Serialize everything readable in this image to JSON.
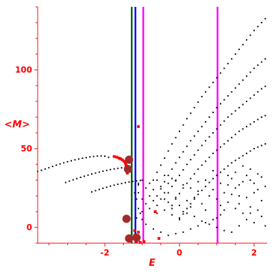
{
  "chart_data": {
    "type": "scatter",
    "title": "",
    "xlabel": "E",
    "ylabel": "<M>",
    "xlim": [
      -3.8,
      2.35
    ],
    "ylim": [
      -10,
      140
    ],
    "x_ticks": [
      -2,
      0,
      2
    ],
    "y_ticks": [
      0,
      50,
      100
    ],
    "grid": false,
    "legend": "none",
    "colors": {
      "axes": "#ff0000",
      "points": "#000000",
      "highlight": "#ff0000",
      "highlight_large": "#a52a2a",
      "line_green": "#006400",
      "line_blue": "#0000ff",
      "line_magenta": "#ff00ff"
    },
    "vertical_lines": [
      {
        "x": -1.28,
        "color": "line_green"
      },
      {
        "x": -1.18,
        "color": "line_blue"
      },
      {
        "x": -0.97,
        "color": "line_magenta"
      },
      {
        "x": 1.02,
        "color": "line_magenta"
      }
    ],
    "series": [
      {
        "points": [
          [
            -3.8,
            35.5
          ],
          [
            -3.7,
            36.3
          ],
          [
            -3.6,
            37.1
          ],
          [
            -3.5,
            37.9
          ],
          [
            -3.4,
            38.7
          ],
          [
            -3.3,
            39.5
          ],
          [
            -3.2,
            40.3
          ],
          [
            -3.1,
            41.0
          ],
          [
            -3.0,
            41.7
          ],
          [
            -2.9,
            42.3
          ],
          [
            -2.8,
            42.9
          ],
          [
            -2.7,
            43.4
          ],
          [
            -2.6,
            43.9
          ],
          [
            -2.5,
            44.3
          ],
          [
            -2.4,
            44.7
          ],
          [
            -2.3,
            45.0
          ],
          [
            -2.2,
            45.3
          ],
          [
            -2.1,
            45.4
          ],
          [
            -2.0,
            45.2
          ],
          [
            -1.9,
            44.5
          ]
        ]
      },
      {
        "points": [
          [
            -3.05,
            28.5
          ],
          [
            -2.95,
            29.4
          ],
          [
            -2.85,
            30.2
          ],
          [
            -2.75,
            31.0
          ],
          [
            -2.65,
            31.8
          ],
          [
            -2.55,
            32.5
          ],
          [
            -2.45,
            33.2
          ],
          [
            -2.35,
            33.9
          ],
          [
            -2.25,
            34.5
          ],
          [
            -2.15,
            35.1
          ],
          [
            -2.05,
            35.7
          ],
          [
            -1.95,
            36.2
          ],
          [
            -1.85,
            36.7
          ],
          [
            -1.75,
            37.1
          ],
          [
            -1.65,
            37.5
          ],
          [
            -1.55,
            37.8
          ],
          [
            -1.45,
            38.0
          ],
          [
            -1.35,
            38.1
          ]
        ]
      },
      {
        "points": [
          [
            -2.35,
            22.5
          ],
          [
            -2.25,
            23.3
          ],
          [
            -2.15,
            24.1
          ],
          [
            -2.05,
            24.8
          ],
          [
            -1.95,
            25.5
          ],
          [
            -1.85,
            26.2
          ],
          [
            -1.75,
            26.8
          ],
          [
            -1.65,
            27.4
          ],
          [
            -1.55,
            27.9
          ],
          [
            -1.45,
            28.4
          ],
          [
            -1.35,
            28.8
          ],
          [
            -1.25,
            29.2
          ],
          [
            -1.15,
            29.5
          ],
          [
            -1.05,
            29.8
          ]
        ]
      },
      {
        "points": [
          [
            -0.7,
            30
          ],
          [
            -0.6,
            35
          ],
          [
            -0.5,
            39.5
          ],
          [
            -0.4,
            44
          ],
          [
            -0.3,
            48.5
          ],
          [
            -0.2,
            53
          ],
          [
            -0.1,
            57
          ],
          [
            0.0,
            61
          ],
          [
            0.1,
            65
          ],
          [
            0.2,
            69
          ],
          [
            0.3,
            72.5
          ],
          [
            0.4,
            76
          ],
          [
            0.5,
            79.5
          ],
          [
            0.6,
            83
          ],
          [
            0.7,
            86
          ],
          [
            0.8,
            89
          ],
          [
            0.9,
            92
          ],
          [
            1.0,
            95
          ],
          [
            1.1,
            98
          ],
          [
            1.2,
            101
          ],
          [
            1.3,
            104
          ],
          [
            1.4,
            107
          ],
          [
            1.5,
            110
          ],
          [
            1.6,
            113
          ],
          [
            1.7,
            116
          ],
          [
            1.8,
            119
          ],
          [
            1.9,
            122
          ],
          [
            2.0,
            125
          ],
          [
            2.1,
            127.5
          ],
          [
            2.2,
            130
          ],
          [
            2.3,
            132.5
          ]
        ]
      },
      {
        "points": [
          [
            -0.6,
            20
          ],
          [
            -0.5,
            24.5
          ],
          [
            -0.4,
            29
          ],
          [
            -0.3,
            33
          ],
          [
            -0.2,
            37
          ],
          [
            -0.1,
            41
          ],
          [
            0.0,
            44.5
          ],
          [
            0.1,
            48
          ],
          [
            0.2,
            51.5
          ],
          [
            0.3,
            55
          ],
          [
            0.4,
            58
          ],
          [
            0.5,
            61
          ],
          [
            0.6,
            64
          ],
          [
            0.7,
            67
          ],
          [
            0.8,
            70
          ],
          [
            0.9,
            73
          ],
          [
            1.0,
            76
          ],
          [
            1.1,
            78.5
          ],
          [
            1.2,
            81
          ],
          [
            1.3,
            83.5
          ],
          [
            1.4,
            86
          ],
          [
            1.5,
            88.5
          ],
          [
            1.6,
            91
          ],
          [
            1.7,
            93.5
          ],
          [
            1.8,
            96
          ],
          [
            1.9,
            98.5
          ],
          [
            2.0,
            101
          ],
          [
            2.1,
            103
          ],
          [
            2.2,
            105
          ],
          [
            2.3,
            107
          ]
        ]
      },
      {
        "points": [
          [
            -0.4,
            18
          ],
          [
            -0.3,
            22
          ],
          [
            -0.2,
            26
          ],
          [
            -0.1,
            29.5
          ],
          [
            0.0,
            33
          ],
          [
            0.1,
            36.5
          ],
          [
            0.2,
            40
          ],
          [
            0.3,
            43
          ],
          [
            0.4,
            46
          ],
          [
            0.5,
            49
          ],
          [
            0.6,
            52
          ],
          [
            0.7,
            55
          ],
          [
            0.8,
            57.5
          ],
          [
            0.9,
            60
          ],
          [
            1.0,
            62.5
          ],
          [
            1.1,
            65
          ],
          [
            1.2,
            67.5
          ],
          [
            1.3,
            70
          ],
          [
            1.4,
            72
          ],
          [
            1.5,
            74
          ],
          [
            1.6,
            76
          ],
          [
            1.7,
            78
          ],
          [
            1.8,
            80
          ],
          [
            1.9,
            82
          ],
          [
            2.0,
            84
          ],
          [
            2.1,
            86
          ],
          [
            2.2,
            88
          ],
          [
            2.3,
            89.5
          ]
        ]
      },
      {
        "points": [
          [
            -0.2,
            14
          ],
          [
            -0.1,
            18
          ],
          [
            0.0,
            21.5
          ],
          [
            0.1,
            25
          ],
          [
            0.2,
            28
          ],
          [
            0.3,
            31
          ],
          [
            0.4,
            34
          ],
          [
            0.5,
            37
          ],
          [
            0.6,
            39.5
          ],
          [
            0.7,
            42
          ],
          [
            0.8,
            44.5
          ],
          [
            0.9,
            47
          ],
          [
            1.0,
            49
          ],
          [
            1.1,
            51
          ],
          [
            1.2,
            53
          ],
          [
            1.3,
            55
          ],
          [
            1.4,
            57
          ],
          [
            1.5,
            59
          ],
          [
            1.6,
            61
          ],
          [
            1.7,
            62.5
          ],
          [
            1.8,
            64
          ],
          [
            1.9,
            65.5
          ],
          [
            2.0,
            67
          ],
          [
            2.1,
            68.5
          ],
          [
            2.2,
            70
          ],
          [
            2.3,
            71
          ]
        ]
      },
      {
        "points": [
          [
            0.0,
            5
          ],
          [
            0.1,
            8.5
          ],
          [
            0.2,
            12
          ],
          [
            0.3,
            15
          ],
          [
            0.4,
            18
          ],
          [
            0.5,
            21
          ],
          [
            0.6,
            23.5
          ],
          [
            0.7,
            26
          ],
          [
            0.8,
            28.5
          ],
          [
            0.9,
            31
          ],
          [
            1.0,
            33
          ],
          [
            1.1,
            35
          ],
          [
            1.2,
            37
          ],
          [
            1.3,
            39
          ],
          [
            1.4,
            41
          ],
          [
            1.5,
            42.5
          ],
          [
            1.6,
            44
          ],
          [
            1.7,
            45.5
          ],
          [
            1.8,
            47
          ],
          [
            1.9,
            48.5
          ],
          [
            2.0,
            50
          ],
          [
            2.1,
            51
          ],
          [
            2.2,
            52
          ],
          [
            2.3,
            53
          ]
        ]
      },
      {
        "points": [
          [
            -1.0,
            18
          ],
          [
            -0.9,
            15
          ],
          [
            -0.8,
            20
          ],
          [
            -0.7,
            17
          ],
          [
            -0.6,
            14
          ],
          [
            -0.5,
            18
          ],
          [
            -0.4,
            22
          ],
          [
            -0.3,
            16
          ],
          [
            -0.2,
            12
          ],
          [
            -0.1,
            19
          ],
          [
            0.0,
            14
          ],
          [
            0.1,
            10
          ],
          [
            0.2,
            17
          ],
          [
            0.3,
            13
          ],
          [
            0.4,
            19
          ],
          [
            0.5,
            23
          ],
          [
            0.6,
            15
          ],
          [
            0.7,
            11
          ],
          [
            0.8,
            20
          ],
          [
            0.9,
            24
          ],
          [
            1.0,
            18
          ],
          [
            1.1,
            14
          ],
          [
            1.2,
            22
          ],
          [
            1.3,
            27
          ],
          [
            1.4,
            31
          ],
          [
            1.5,
            25
          ],
          [
            1.6,
            20
          ],
          [
            1.7,
            29
          ],
          [
            1.8,
            33
          ],
          [
            1.9,
            37
          ],
          [
            2.0,
            28
          ],
          [
            2.1,
            24
          ],
          [
            2.2,
            32
          ],
          [
            2.3,
            26
          ],
          [
            1.5,
            35
          ],
          [
            1.7,
            39
          ],
          [
            1.9,
            30
          ],
          [
            2.1,
            34
          ],
          [
            1.3,
            33
          ],
          [
            1.1,
            28
          ],
          [
            0.9,
            36
          ],
          [
            0.7,
            30
          ],
          [
            0.5,
            29
          ],
          [
            0.3,
            25
          ],
          [
            0.1,
            27
          ],
          [
            -0.1,
            30
          ],
          [
            -0.3,
            28
          ],
          [
            -0.5,
            26
          ],
          [
            -0.7,
            24
          ],
          [
            -0.9,
            25
          ],
          [
            -1.1,
            27
          ],
          [
            -1.1,
            22
          ],
          [
            -0.8,
            12
          ],
          [
            -0.6,
            9
          ],
          [
            -0.4,
            11
          ],
          [
            -0.2,
            8
          ],
          [
            0.0,
            6
          ],
          [
            0.2,
            9
          ],
          [
            0.4,
            7
          ],
          [
            0.6,
            4
          ],
          [
            0.8,
            2
          ],
          [
            1.0,
            0
          ],
          [
            1.2,
            -2
          ],
          [
            1.4,
            -3
          ],
          [
            1.6,
            1
          ],
          [
            1.8,
            5
          ],
          [
            2.0,
            3
          ],
          [
            2.2,
            7
          ],
          [
            2.3,
            1
          ],
          [
            1.9,
            13
          ],
          [
            1.7,
            9
          ],
          [
            1.5,
            12
          ],
          [
            1.3,
            16
          ],
          [
            1.1,
            8
          ],
          [
            0.9,
            5
          ],
          [
            0.7,
            3
          ],
          [
            0.5,
            1
          ],
          [
            0.3,
            -1
          ],
          [
            0.1,
            -3
          ],
          [
            -0.1,
            -4
          ],
          [
            -0.3,
            -5
          ],
          [
            -0.5,
            -3
          ],
          [
            -0.7,
            -1
          ],
          [
            -0.9,
            2
          ],
          [
            -1.0,
            5
          ],
          [
            -1.0,
            10
          ],
          [
            -0.6,
            30
          ],
          [
            -0.4,
            33
          ],
          [
            -0.2,
            31
          ],
          [
            -0.8,
            28
          ],
          [
            1.6,
            15
          ],
          [
            1.8,
            19
          ],
          [
            2.0,
            22
          ],
          [
            2.2,
            17
          ],
          [
            2.1,
            11
          ],
          [
            1.9,
            9
          ],
          [
            1.6,
            27
          ],
          [
            1.4,
            21
          ],
          [
            1.2,
            11
          ],
          [
            1.0,
            6
          ]
        ]
      },
      {
        "points": [
          [
            -1.1,
            28
          ],
          [
            -1.2,
            22
          ],
          [
            -1.15,
            18
          ],
          [
            -1.1,
            12
          ],
          [
            -1.0,
            30
          ],
          [
            -1.05,
            9
          ],
          [
            -1.15,
            6
          ]
        ]
      }
    ],
    "highlight_points": [
      [
        -1.75,
        45.0
      ],
      [
        -1.68,
        44.6
      ],
      [
        -1.62,
        44.0
      ],
      [
        -1.58,
        43.6
      ],
      [
        -1.53,
        42.9
      ],
      [
        -1.49,
        42.0
      ],
      [
        -1.45,
        40.8
      ],
      [
        -1.43,
        39.5
      ],
      [
        -1.42,
        36.0
      ],
      [
        -1.4,
        34.5
      ],
      [
        -0.55,
        -7
      ],
      [
        -1.1,
        -3
      ],
      [
        -1.2,
        -6
      ],
      [
        -1.1,
        -8
      ],
      [
        -0.95,
        -9
      ],
      [
        -1.05,
        -9.5
      ],
      [
        -1.3,
        -7
      ],
      [
        -1.2,
        -2
      ],
      [
        -1.15,
        -9
      ],
      [
        -0.65,
        10
      ],
      [
        -1.1,
        64
      ],
      [
        -1.2,
        -5
      ]
    ],
    "highlight_large_points": [
      [
        -1.35,
        43.0
      ],
      [
        -1.38,
        37.0
      ],
      [
        -1.42,
        5.5
      ],
      [
        -1.35,
        -7
      ],
      [
        -1.15,
        -6.5
      ]
    ]
  }
}
